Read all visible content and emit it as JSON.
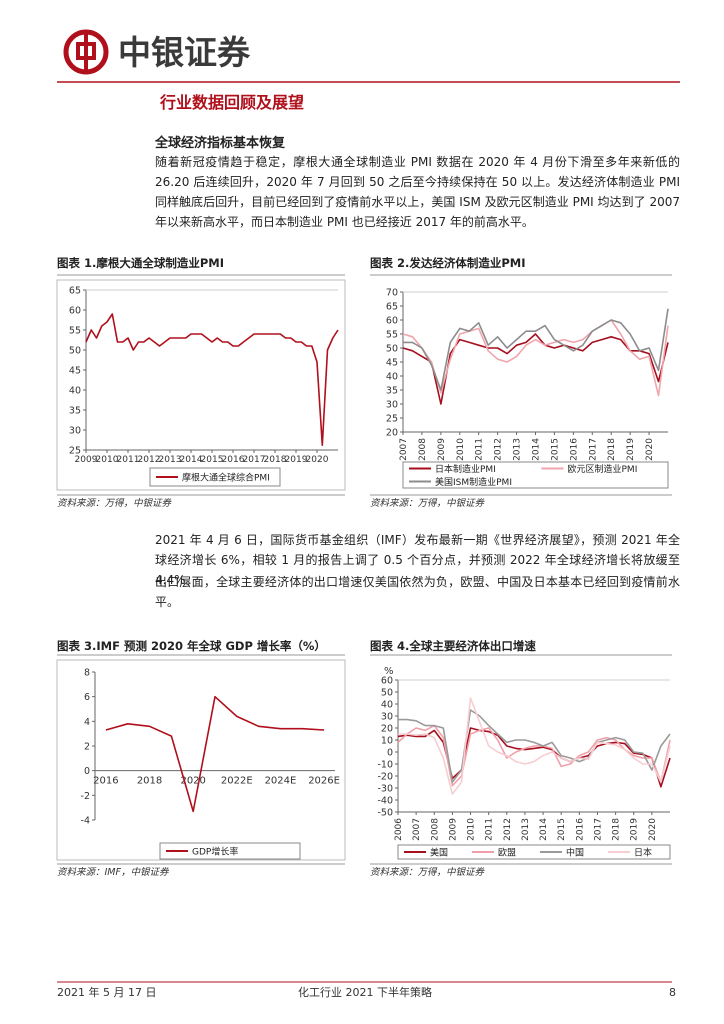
{
  "header": {
    "brand": "中银证券"
  },
  "section_title": "行业数据回顾及展望",
  "subsection_title": "全球经济指标基本恢复",
  "paragraphs": [
    "随着新冠疫情趋于稳定，摩根大通全球制造业 PMI 数据在 2020 年 4 月份下滑至多年来新低的 26.20 后连续回升，2020 年 7 月回到 50 之后至今持续保持在 50 以上。发达经济体制造业 PMI 同样触底后回升，目前已经回到了疫情前水平以上，美国 ISM 及欧元区制造业 PMI 均达到了 2007 年以来新高水平，而日本制造业 PMI 也已经接近 2017 年的前高水平。",
    "2021 年 4 月 6 日，国际货币基金组织（IMF）发布最新一期《世界经济展望》，预测 2021 年全球经济增长 6%，相较 1 月的报告上调了 0.5 个百分点，并预测 2022 年全球经济增长将放缓至 4.4%。",
    "出口层面，全球主要经济体的出口增速仅美国依然为负，欧盟、中国及日本基本已经回到疫情前水平。"
  ],
  "chart_data": [
    {
      "type": "line",
      "title": "图表 1.摩根大通全球制造业PMI",
      "source": "资料来源：万得，中银证券",
      "x": [
        2009,
        2009.25,
        2009.5,
        2009.75,
        2010,
        2010.25,
        2010.5,
        2010.75,
        2011,
        2011.25,
        2011.5,
        2011.75,
        2012,
        2012.25,
        2012.5,
        2012.75,
        2013,
        2013.25,
        2013.5,
        2013.75,
        2014,
        2014.25,
        2014.5,
        2014.75,
        2015,
        2015.25,
        2015.5,
        2015.75,
        2016,
        2016.25,
        2016.5,
        2016.75,
        2017,
        2017.25,
        2017.5,
        2017.75,
        2018,
        2018.25,
        2018.5,
        2018.75,
        2019,
        2019.25,
        2019.5,
        2019.75,
        2020,
        2020.25,
        2020.5,
        2020.75,
        2021
      ],
      "xlim": [
        2009,
        2021
      ],
      "xticks": [
        2009,
        2010,
        2011,
        2012,
        2013,
        2014,
        2015,
        2016,
        2017,
        2018,
        2019,
        2020
      ],
      "ylim": [
        25,
        65
      ],
      "yticks": [
        25,
        30,
        35,
        40,
        45,
        50,
        55,
        60,
        65
      ],
      "grid": false,
      "series": [
        {
          "name": "摩根大通全球综合PMI",
          "color": "#b0101c",
          "values": [
            52,
            55,
            53,
            56,
            57,
            59,
            52,
            52,
            53,
            50,
            52,
            52,
            53,
            52,
            51,
            52,
            53,
            53,
            53,
            53,
            54,
            54,
            54,
            53,
            52,
            53,
            52,
            52,
            51,
            51,
            52,
            53,
            54,
            54,
            54,
            54,
            54,
            54,
            53,
            53,
            52,
            52,
            51,
            51,
            47,
            26.2,
            50,
            53,
            55
          ]
        }
      ]
    },
    {
      "type": "line",
      "title": "图表 2.发达经济体制造业PMI",
      "source": "资料来源：万得，中银证券",
      "x": [
        2007,
        2007.5,
        2008,
        2008.5,
        2009,
        2009.5,
        2010,
        2010.5,
        2011,
        2011.5,
        2012,
        2012.5,
        2013,
        2013.5,
        2014,
        2014.5,
        2015,
        2015.5,
        2016,
        2016.5,
        2017,
        2017.5,
        2018,
        2018.5,
        2019,
        2019.5,
        2020,
        2020.5,
        2021
      ],
      "xlim": [
        2007,
        2021
      ],
      "xticks": [
        2007,
        2008,
        2009,
        2010,
        2011,
        2012,
        2013,
        2014,
        2015,
        2016,
        2017,
        2018,
        2019,
        2020
      ],
      "ylim": [
        20,
        70
      ],
      "yticks": [
        20,
        25,
        30,
        35,
        40,
        45,
        50,
        55,
        60,
        65,
        70
      ],
      "grid": false,
      "series": [
        {
          "name": "日本制造业PMI",
          "color": "#a50f1e",
          "values": [
            50,
            49,
            47,
            45,
            30,
            48,
            53,
            52,
            51,
            50,
            50,
            48,
            51,
            52,
            55,
            51,
            50,
            51,
            50,
            49,
            52,
            53,
            54,
            53,
            49,
            49,
            48,
            38,
            52
          ]
        },
        {
          "name": "欧元区制造业PMI",
          "color": "#f1a5ad",
          "values": [
            55,
            54,
            50,
            45,
            34,
            46,
            55,
            56,
            57,
            49,
            46,
            45,
            47,
            51,
            53,
            51,
            52,
            53,
            52,
            53,
            56,
            58,
            60,
            55,
            49,
            46,
            47,
            33,
            58
          ]
        },
        {
          "name": "美国ISM制造业PMI",
          "color": "#8c8c8c",
          "values": [
            52,
            52,
            50,
            44,
            35,
            52,
            57,
            56,
            59,
            51,
            54,
            50,
            53,
            56,
            56,
            58,
            53,
            51,
            49,
            51,
            56,
            58,
            60,
            59,
            55,
            49,
            50,
            42,
            64
          ]
        }
      ]
    },
    {
      "type": "line",
      "title": "图表 3.IMF 预测 2020 年全球 GDP 增长率（%）",
      "source": "资料来源：IMF，中银证券",
      "categories": [
        "2016",
        null,
        "2018",
        null,
        "2020",
        null,
        "2022E",
        null,
        "2024E",
        null,
        "2026E"
      ],
      "ylim": [
        -4,
        8
      ],
      "yticks": [
        -4,
        -2,
        0,
        2,
        4,
        6,
        8
      ],
      "grid": false,
      "series": [
        {
          "name": "GDP增长率",
          "color": "#b0101c",
          "values": [
            3.3,
            3.8,
            3.6,
            2.8,
            -3.3,
            6.0,
            4.4,
            3.6,
            3.4,
            3.4,
            3.3
          ]
        }
      ]
    },
    {
      "type": "line",
      "title": "图表 4.全球主要经济体出口增速",
      "source": "资料来源：万得，中银证券",
      "y_label": "%",
      "x": [
        2006,
        2006.5,
        2007,
        2007.5,
        2008,
        2008.5,
        2009,
        2009.5,
        2010,
        2010.5,
        2011,
        2011.5,
        2012,
        2012.5,
        2013,
        2013.5,
        2014,
        2014.5,
        2015,
        2015.5,
        2016,
        2016.5,
        2017,
        2017.5,
        2018,
        2018.5,
        2019,
        2019.5,
        2020,
        2020.5,
        2021
      ],
      "xlim": [
        2006,
        2021
      ],
      "xticks": [
        2006,
        2007,
        2008,
        2009,
        2010,
        2011,
        2012,
        2013,
        2014,
        2015,
        2016,
        2017,
        2018,
        2019,
        2020
      ],
      "ylim": [
        -50,
        60
      ],
      "yticks": [
        -50,
        -40,
        -30,
        -20,
        -10,
        0,
        10,
        20,
        30,
        40,
        50,
        60
      ],
      "grid": false,
      "series": [
        {
          "name": "美国",
          "color": "#a50f1e",
          "values": [
            13,
            14,
            13,
            13,
            18,
            8,
            -22,
            -15,
            20,
            18,
            17,
            14,
            5,
            3,
            2,
            3,
            4,
            2,
            -5,
            -8,
            -5,
            -3,
            5,
            7,
            8,
            7,
            -1,
            -2,
            -5,
            -29,
            -5
          ]
        },
        {
          "name": "欧盟",
          "color": "#f0a0a8",
          "values": [
            8,
            15,
            20,
            18,
            22,
            12,
            -28,
            -20,
            15,
            18,
            20,
            10,
            -5,
            0,
            3,
            5,
            5,
            3,
            -12,
            -10,
            -3,
            0,
            10,
            12,
            10,
            2,
            -3,
            -5,
            -5,
            -25,
            10
          ]
        },
        {
          "name": "中国",
          "color": "#9a9a9a",
          "values": [
            27,
            27,
            26,
            22,
            22,
            20,
            -25,
            -15,
            35,
            30,
            22,
            15,
            8,
            10,
            10,
            8,
            5,
            8,
            -3,
            -5,
            -8,
            -5,
            8,
            10,
            12,
            10,
            0,
            -1,
            -15,
            5,
            15
          ]
        },
        {
          "name": "日本",
          "color": "#f7cdd2",
          "values": [
            15,
            15,
            14,
            15,
            12,
            -5,
            -35,
            -25,
            45,
            25,
            5,
            0,
            -3,
            -8,
            -10,
            -8,
            -3,
            0,
            -5,
            -8,
            -5,
            -6,
            8,
            7,
            6,
            2,
            -5,
            -10,
            -10,
            -25,
            5
          ]
        }
      ]
    }
  ],
  "footer": {
    "date": "2021 年 5 月 17 日",
    "title": "化工行业 2021 下半年策略",
    "page": "8"
  }
}
